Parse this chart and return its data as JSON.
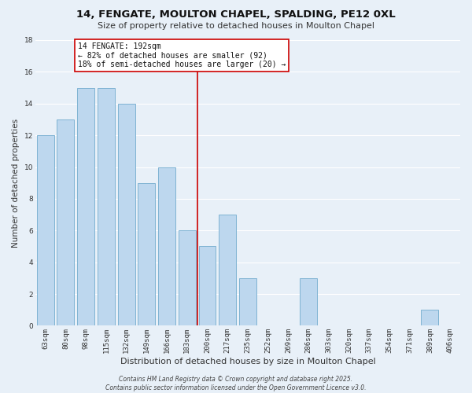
{
  "title": "14, FENGATE, MOULTON CHAPEL, SPALDING, PE12 0XL",
  "subtitle": "Size of property relative to detached houses in Moulton Chapel",
  "xlabel": "Distribution of detached houses by size in Moulton Chapel",
  "ylabel": "Number of detached properties",
  "categories": [
    "63sqm",
    "80sqm",
    "98sqm",
    "115sqm",
    "132sqm",
    "149sqm",
    "166sqm",
    "183sqm",
    "200sqm",
    "217sqm",
    "235sqm",
    "252sqm",
    "269sqm",
    "286sqm",
    "303sqm",
    "320sqm",
    "337sqm",
    "354sqm",
    "371sqm",
    "389sqm",
    "406sqm"
  ],
  "values": [
    12,
    13,
    15,
    15,
    14,
    9,
    10,
    6,
    5,
    7,
    3,
    0,
    0,
    3,
    0,
    0,
    0,
    0,
    0,
    1,
    0
  ],
  "bar_color": "#bdd7ee",
  "bar_edge_color": "#7fb3d3",
  "background_color": "#e8f0f8",
  "grid_color": "#ffffff",
  "vline_x_index": 7.5,
  "vline_color": "#cc0000",
  "annotation_text": "14 FENGATE: 192sqm\n← 82% of detached houses are smaller (92)\n18% of semi-detached houses are larger (20) →",
  "annotation_box_color": "#ffffff",
  "annotation_box_edge_color": "#cc0000",
  "ylim": [
    0,
    18
  ],
  "yticks": [
    0,
    2,
    4,
    6,
    8,
    10,
    12,
    14,
    16,
    18
  ],
  "footer_text": "Contains HM Land Registry data © Crown copyright and database right 2025.\nContains public sector information licensed under the Open Government Licence v3.0.",
  "title_fontsize": 9.5,
  "subtitle_fontsize": 8.0,
  "xlabel_fontsize": 8.0,
  "ylabel_fontsize": 7.5,
  "tick_fontsize": 6.5,
  "annotation_fontsize": 7.0,
  "footer_fontsize": 5.5
}
